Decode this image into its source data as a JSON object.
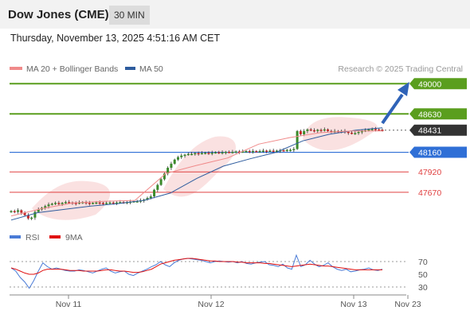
{
  "header": {
    "title": "Dow Jones (CME)",
    "timeframe": "30 MIN",
    "datetime": "Thursday, November 13, 2025 4:51:16 AM CET"
  },
  "chart_data": {
    "type": "candlestick",
    "instrument": "Dow Jones (CME)",
    "legend": [
      {
        "label": "MA 20 + Bollinger Bands",
        "color": "#f08a8a"
      },
      {
        "label": "MA 50",
        "color": "#2e5c9e"
      }
    ],
    "credit": "Research © 2025 Trading Central",
    "levels": [
      {
        "value": 49000,
        "label": "49000",
        "color": "#5a9e1e",
        "style": "resistance-target"
      },
      {
        "value": 48630,
        "label": "48630",
        "color": "#5a9e1e",
        "style": "resistance"
      },
      {
        "value": 48431,
        "label": "48431",
        "color": "#333333",
        "style": "last-price"
      },
      {
        "value": 48160,
        "label": "48160",
        "color": "#2f6fd6",
        "style": "pivot"
      },
      {
        "value": 47920,
        "label": "47920",
        "color": "#e04040",
        "style": "support"
      },
      {
        "value": 47670,
        "label": "47670",
        "color": "#e04040",
        "style": "support"
      }
    ],
    "price_path": [
      47440,
      47430,
      47450,
      47420,
      47390,
      47350,
      47360,
      47430,
      47460,
      47480,
      47500,
      47520,
      47530,
      47540,
      47530,
      47540,
      47550,
      47545,
      47540,
      47535,
      47545,
      47550,
      47540,
      47535,
      47540,
      47545,
      47540,
      47535,
      47540,
      47545,
      47540,
      47545,
      47550,
      47545,
      47550,
      47555,
      47560,
      47560,
      47570,
      47580,
      47600,
      47620,
      47700,
      47760,
      47830,
      47900,
      47970,
      48020,
      48070,
      48100,
      48120,
      48130,
      48140,
      48140,
      48150,
      48145,
      48150,
      48155,
      48150,
      48155,
      48160,
      48155,
      48160,
      48165,
      48160,
      48165,
      48170,
      48165,
      48170,
      48175,
      48170,
      48175,
      48170,
      48175,
      48180,
      48175,
      48180,
      48175,
      48180,
      48185,
      48180,
      48190,
      48190,
      48200,
      48420,
      48380,
      48420,
      48440,
      48430,
      48420,
      48435,
      48425,
      48440,
      48420,
      48415,
      48420,
      48410,
      48420,
      48410,
      48400,
      48390,
      48395,
      48410,
      48420,
      48430,
      48440,
      48445,
      48440,
      48435,
      48431
    ],
    "ma20": [
      47380,
      47470,
      47540,
      47560,
      47570,
      47900,
      48000,
      48090,
      48260,
      48340,
      48400,
      48420,
      48420
    ],
    "ma50": [
      47330,
      47420,
      47460,
      47500,
      47530,
      47570,
      47660,
      47840,
      47990,
      48080,
      48160,
      48300,
      48380,
      48430,
      48460
    ],
    "rsi": {
      "label": "RSI",
      "color": "#4a7bd6",
      "ticks": [
        70,
        50,
        30
      ],
      "values": [
        60,
        55,
        45,
        38,
        28,
        40,
        55,
        68,
        62,
        58,
        60,
        58,
        56,
        55,
        55,
        57,
        56,
        54,
        52,
        55,
        58,
        60,
        55,
        52,
        54,
        55,
        50,
        48,
        52,
        55,
        58,
        62,
        65,
        70,
        65,
        62,
        68,
        72,
        74,
        75,
        74,
        73,
        72,
        70,
        68,
        70,
        71,
        70,
        69,
        70,
        68,
        70,
        67,
        66,
        68,
        69,
        70,
        65,
        64,
        62,
        66,
        60,
        58,
        80,
        62,
        65,
        72,
        66,
        62,
        64,
        68,
        62,
        58,
        56,
        58,
        54,
        55,
        57,
        58,
        60,
        57,
        56,
        58
      ]
    },
    "rsi_ma": {
      "label": "9MA",
      "color": "#e01010",
      "values": [
        60,
        58,
        55,
        52,
        50,
        50,
        52,
        56,
        58,
        58,
        58,
        58,
        57,
        56,
        56,
        56,
        55,
        55,
        55,
        55,
        56,
        57,
        57,
        56,
        55,
        55,
        54,
        53,
        53,
        54,
        56,
        58,
        62,
        66,
        68,
        70,
        72,
        73,
        74,
        75,
        75,
        74,
        73,
        72,
        71,
        71,
        70,
        70,
        70,
        70,
        69,
        69,
        68,
        68,
        68,
        68,
        67,
        67,
        66,
        65,
        64,
        63,
        62,
        63,
        64,
        65,
        66,
        65,
        64,
        63,
        63,
        62,
        61,
        60,
        59,
        58,
        57,
        57,
        57,
        57,
        57,
        57,
        57
      ]
    },
    "x_labels": [
      "Nov 11",
      "Nov 12",
      "Nov 13",
      "Nov 23"
    ],
    "ylim": [
      47250,
      49100
    ]
  }
}
